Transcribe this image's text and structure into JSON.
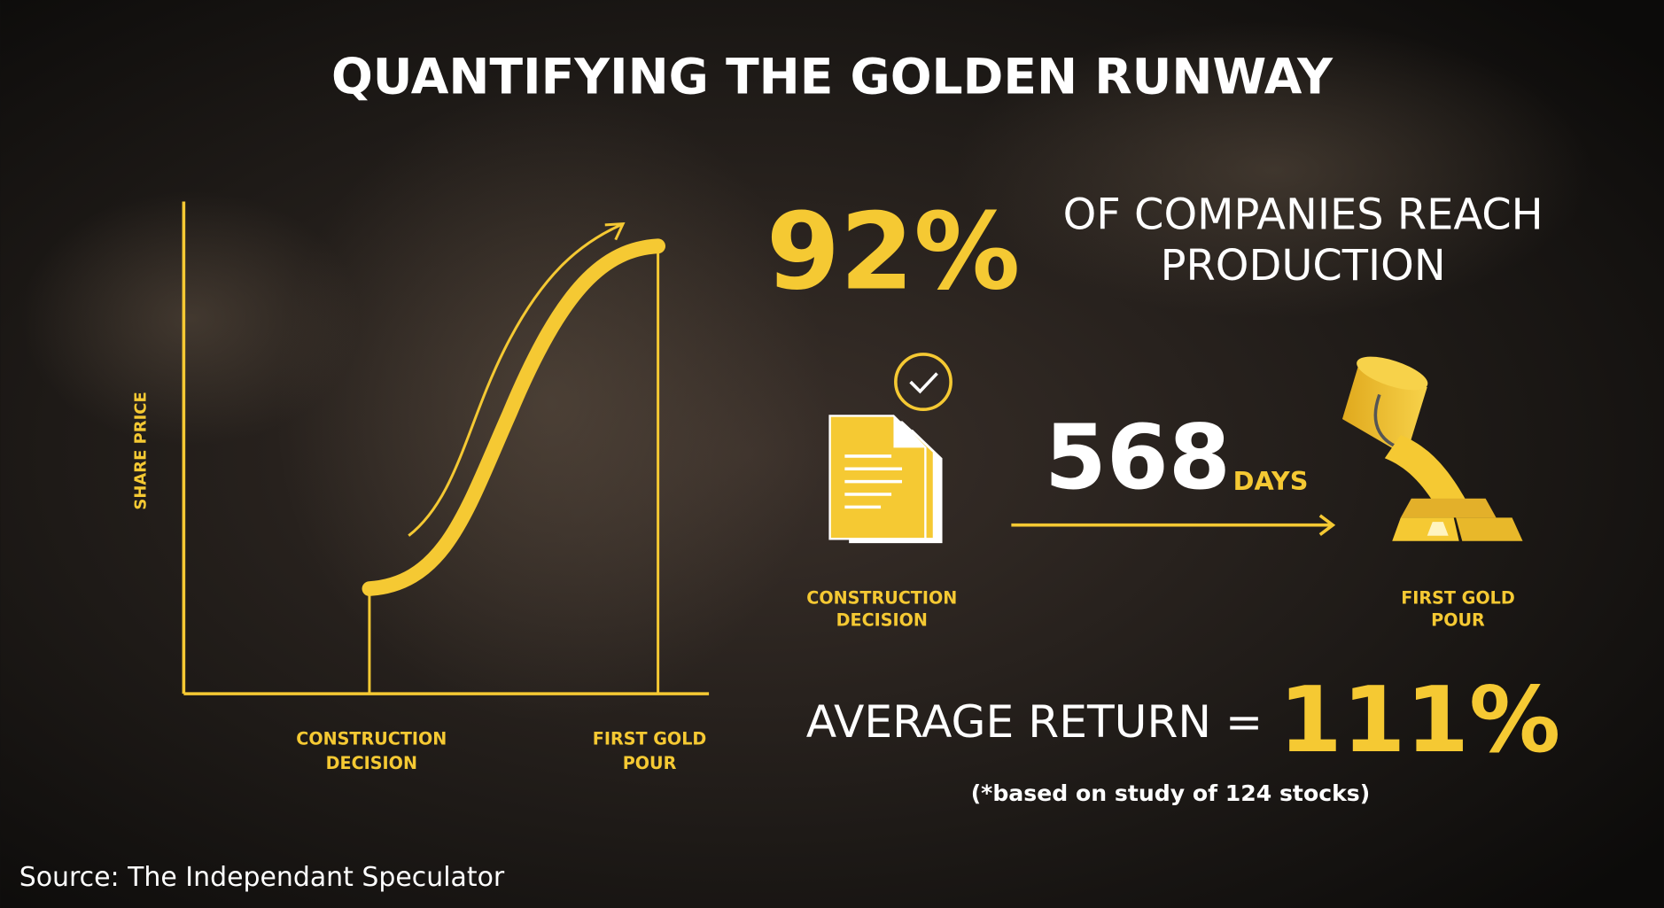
{
  "header": {
    "title": "QUANTIFYING THE GOLDEN RUNWAY"
  },
  "chart": {
    "y_axis_label": "SHARE PRICE",
    "x_labels": [
      [
        "CONSTRUCTION",
        "DECISION"
      ],
      [
        "FIRST GOLD",
        "POUR"
      ]
    ]
  },
  "stats": {
    "share": "92%",
    "share_text": [
      "OF COMPANIES REACH",
      "PRODUCTION"
    ],
    "days": "568",
    "days_unit": "DAYS",
    "start_label": [
      "CONSTRUCTION",
      "DECISION"
    ],
    "end_label": [
      "FIRST GOLD",
      "POUR"
    ],
    "return_text": "AVERAGE RETURN =",
    "return_value": "111%",
    "note": "(*based on study of 124 stocks)"
  },
  "footer": {
    "source": "Source: The Independant Speculator"
  }
}
